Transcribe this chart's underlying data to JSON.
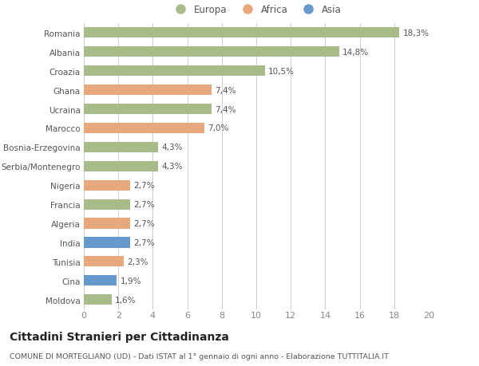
{
  "countries": [
    "Romania",
    "Albania",
    "Croazia",
    "Ghana",
    "Ucraina",
    "Marocco",
    "Bosnia-Erzegovina",
    "Serbia/Montenegro",
    "Nigeria",
    "Francia",
    "Algeria",
    "India",
    "Tunisia",
    "Cina",
    "Moldova"
  ],
  "values": [
    18.3,
    14.8,
    10.5,
    7.4,
    7.4,
    7.0,
    4.3,
    4.3,
    2.7,
    2.7,
    2.7,
    2.7,
    2.3,
    1.9,
    1.6
  ],
  "labels": [
    "18,3%",
    "14,8%",
    "10,5%",
    "7,4%",
    "7,4%",
    "7,0%",
    "4,3%",
    "4,3%",
    "2,7%",
    "2,7%",
    "2,7%",
    "2,7%",
    "2,3%",
    "1,9%",
    "1,6%"
  ],
  "continents": [
    "Europa",
    "Europa",
    "Europa",
    "Africa",
    "Europa",
    "Africa",
    "Europa",
    "Europa",
    "Africa",
    "Europa",
    "Africa",
    "Asia",
    "Africa",
    "Asia",
    "Europa"
  ],
  "colors": {
    "Europa": "#a8bc8a",
    "Africa": "#e8a87c",
    "Asia": "#6699cc"
  },
  "title": "Cittadini Stranieri per Cittadinanza",
  "subtitle": "COMUNE DI MORTEGLIANO (UD) - Dati ISTAT al 1° gennaio di ogni anno - Elaborazione TUTTITALIA.IT",
  "xlim": [
    0,
    20
  ],
  "xticks": [
    0,
    2,
    4,
    6,
    8,
    10,
    12,
    14,
    16,
    18,
    20
  ],
  "background_color": "#ffffff",
  "grid_color": "#cccccc",
  "bar_height": 0.55,
  "label_fontsize": 7.5,
  "ytick_fontsize": 7.5,
  "xtick_fontsize": 8,
  "title_fontsize": 10,
  "subtitle_fontsize": 6.8,
  "legend_fontsize": 8.5
}
